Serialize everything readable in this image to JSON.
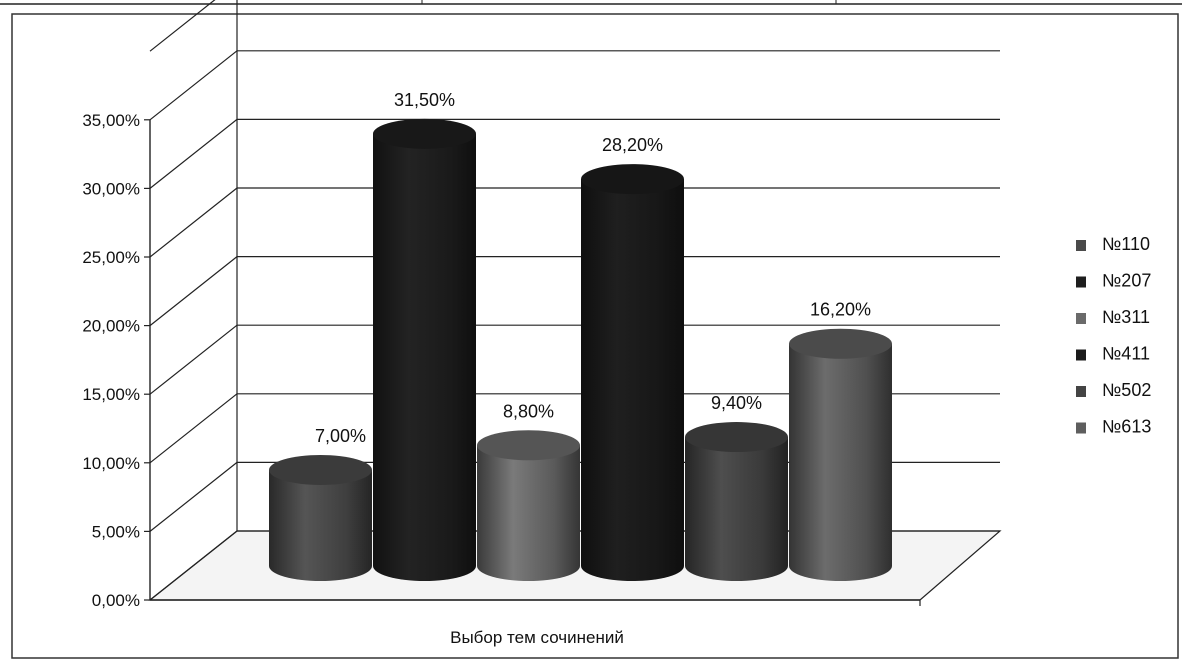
{
  "chart_data": {
    "type": "bar",
    "style": "3d-cylinder",
    "xlabel": "Выбор тем сочинений",
    "ylabel": "",
    "ylim": [
      0,
      35
    ],
    "y_ticks": [
      "0,00%",
      "5,00%",
      "10,00%",
      "15,00%",
      "20,00%",
      "25,00%",
      "30,00%",
      "35,00%"
    ],
    "grid": true,
    "legend_position": "right",
    "series": [
      {
        "name": "№110",
        "value": 7.0,
        "label": "7,00%",
        "color": "#4a4a4a"
      },
      {
        "name": "№207",
        "value": 31.5,
        "label": "31,50%",
        "color": "#1e1e1e"
      },
      {
        "name": "№311",
        "value": 8.8,
        "label": "8,80%",
        "color": "#6a6a6a"
      },
      {
        "name": "№411",
        "value": 28.2,
        "label": "28,20%",
        "color": "#1b1b1b"
      },
      {
        "name": "№502",
        "value": 9.4,
        "label": "9,40%",
        "color": "#444444"
      },
      {
        "name": "№613",
        "value": 16.2,
        "label": "16,20%",
        "color": "#5e5e5e"
      }
    ]
  }
}
